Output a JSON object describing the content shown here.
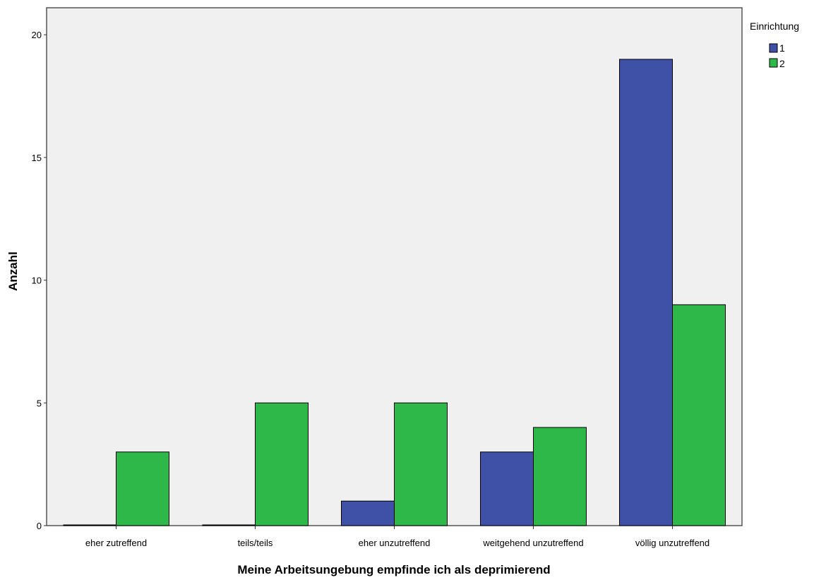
{
  "chart_data": {
    "type": "bar",
    "xlabel": "Meine Arbeitsungebung empfinde ich als deprimierend",
    "ylabel": "Anzahl",
    "ylim": [
      0,
      21.1
    ],
    "yticks": [
      "0",
      "5",
      "10",
      "15",
      "20"
    ],
    "grid": false,
    "legend_position": "top-right",
    "categories": [
      "eher zutreffend",
      "teils/teils",
      "eher unzutreffend",
      "weitgehend unzutreffend",
      "völlig unzutreffend"
    ],
    "legend_title": "Einrichtung",
    "series": [
      {
        "name": "1",
        "color": "#3f51a6",
        "values": [
          0,
          0,
          1,
          3,
          19
        ]
      },
      {
        "name": "2",
        "color": "#2fb84a",
        "values": [
          3,
          5,
          5,
          4,
          9
        ]
      }
    ],
    "plot_background": "#f0f0f0"
  }
}
